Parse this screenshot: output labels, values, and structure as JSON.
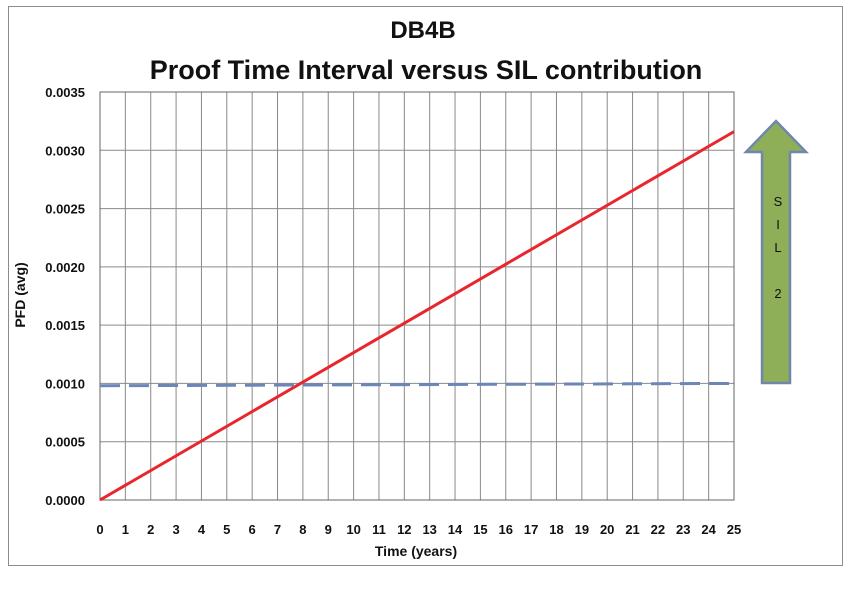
{
  "chart_data": {
    "type": "line",
    "title": "DB4B",
    "subtitle": "Proof Time Interval versus SIL contribution",
    "xlabel": "Time (years)",
    "ylabel": "PFD (avg)",
    "xlim": [
      0,
      25
    ],
    "ylim": [
      0,
      0.0035
    ],
    "x_ticks": [
      "0",
      "1",
      "2",
      "3",
      "4",
      "5",
      "6",
      "7",
      "8",
      "9",
      "10",
      "11",
      "12",
      "13",
      "14",
      "15",
      "16",
      "17",
      "18",
      "19",
      "20",
      "21",
      "22",
      "23",
      "24",
      "25"
    ],
    "y_ticks": [
      "0.0000",
      "0.0005",
      "0.0010",
      "0.0015",
      "0.0020",
      "0.0025",
      "0.0030",
      "0.0035"
    ],
    "grid": true,
    "series": [
      {
        "x": [
          0,
          25
        ],
        "values": [
          0.0,
          0.00316
        ],
        "color": "#e8262c",
        "style": "solid"
      },
      {
        "x": [
          0,
          25
        ],
        "values": [
          0.00098,
          0.001
        ],
        "color": "#6d86b8",
        "style": "dashed"
      }
    ],
    "annotation": {
      "text": [
        "S",
        "I",
        "L",
        "",
        "2"
      ],
      "color": "#8fae58",
      "direction": "up"
    }
  }
}
